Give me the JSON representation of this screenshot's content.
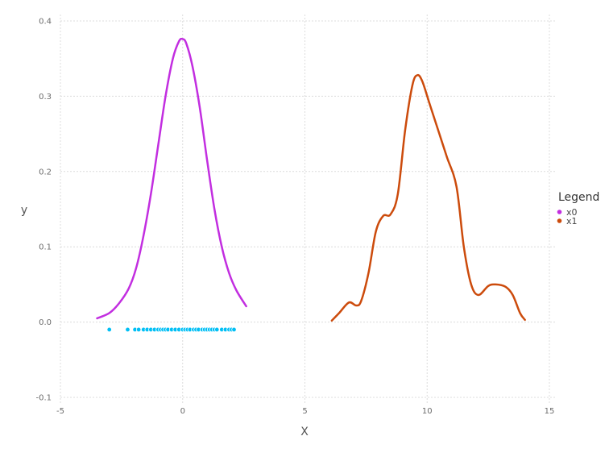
{
  "chart_data": {
    "type": "line",
    "xlabel": "X",
    "ylabel": "y",
    "xlim": [
      -5,
      15
    ],
    "ylim": [
      -0.1,
      0.4
    ],
    "x_ticks": [
      "-5",
      "0",
      "5",
      "10",
      "15"
    ],
    "y_ticks": [
      "-0.1",
      "0.0",
      "0.1",
      "0.2",
      "0.3",
      "0.4"
    ],
    "grid": true,
    "legend": {
      "title": "Legend",
      "position": "right"
    },
    "series": [
      {
        "name": "x0",
        "color": "#c22ee0",
        "points": [
          [
            -3.5,
            0.005
          ],
          [
            -3.0,
            0.012
          ],
          [
            -2.6,
            0.025
          ],
          [
            -2.2,
            0.045
          ],
          [
            -1.9,
            0.072
          ],
          [
            -1.6,
            0.115
          ],
          [
            -1.3,
            0.17
          ],
          [
            -1.0,
            0.235
          ],
          [
            -0.7,
            0.3
          ],
          [
            -0.4,
            0.35
          ],
          [
            -0.15,
            0.373
          ],
          [
            0.0,
            0.376
          ],
          [
            0.15,
            0.37
          ],
          [
            0.4,
            0.34
          ],
          [
            0.7,
            0.285
          ],
          [
            1.0,
            0.215
          ],
          [
            1.3,
            0.15
          ],
          [
            1.6,
            0.1
          ],
          [
            1.9,
            0.065
          ],
          [
            2.2,
            0.042
          ],
          [
            2.6,
            0.021
          ]
        ]
      },
      {
        "name": "x1",
        "color": "#cc4b0c",
        "points": [
          [
            6.1,
            0.002
          ],
          [
            6.4,
            0.012
          ],
          [
            6.8,
            0.026
          ],
          [
            7.1,
            0.022
          ],
          [
            7.3,
            0.028
          ],
          [
            7.6,
            0.065
          ],
          [
            7.9,
            0.12
          ],
          [
            8.2,
            0.141
          ],
          [
            8.5,
            0.143
          ],
          [
            8.8,
            0.17
          ],
          [
            9.1,
            0.255
          ],
          [
            9.4,
            0.315
          ],
          [
            9.6,
            0.328
          ],
          [
            9.8,
            0.32
          ],
          [
            10.1,
            0.29
          ],
          [
            10.4,
            0.26
          ],
          [
            10.8,
            0.22
          ],
          [
            11.2,
            0.18
          ],
          [
            11.5,
            0.1
          ],
          [
            11.8,
            0.05
          ],
          [
            12.1,
            0.036
          ],
          [
            12.5,
            0.048
          ],
          [
            12.8,
            0.05
          ],
          [
            13.2,
            0.047
          ],
          [
            13.5,
            0.036
          ],
          [
            13.8,
            0.012
          ],
          [
            14.0,
            0.003
          ]
        ]
      }
    ],
    "rug": {
      "color": "#00bff5",
      "y": -0.01,
      "x": [
        -3.0,
        -2.25,
        -1.95,
        -1.8,
        -1.6,
        -1.45,
        -1.3,
        -1.15,
        -1.0,
        -0.9,
        -0.8,
        -0.7,
        -0.6,
        -0.45,
        -0.3,
        -0.15,
        0.0,
        0.1,
        0.2,
        0.3,
        0.45,
        0.55,
        0.65,
        0.8,
        0.9,
        1.0,
        1.1,
        1.2,
        1.3,
        1.4,
        1.6,
        1.75,
        1.9,
        2.0,
        2.1
      ]
    }
  }
}
